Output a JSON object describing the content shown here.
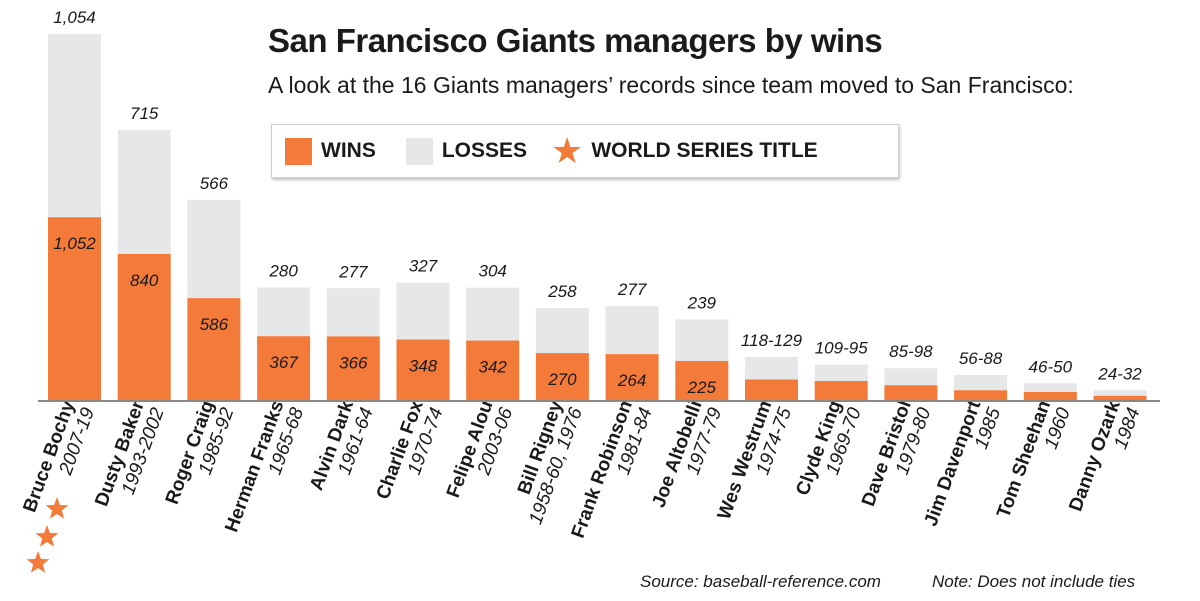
{
  "title": "San Francisco Giants managers by wins",
  "subtitle": "A look at the 16 Giants managers’ records  since team moved to San Francisco:",
  "legend": {
    "wins": "WINS",
    "losses": "LOSSES",
    "ws": "WORLD SERIES TITLE",
    "star_icon": "star-icon"
  },
  "source": "Source: baseball-reference.com",
  "note": "Note: Does not include ties",
  "colors": {
    "wins": "#f47a3a",
    "losses": "#e6e7e8",
    "star": "#f47a3a",
    "axis": "#888888"
  },
  "chart_data": {
    "type": "bar",
    "stacked": true,
    "title": "San Francisco Giants managers by wins",
    "categories": [
      "Bruce Bochy",
      "Dusty Baker",
      "Roger Craig",
      "Herman Franks",
      "Alvin Dark",
      "Charlie Fox",
      "Felipe Alou",
      "Bill Rigney",
      "Frank Robinson",
      "Joe Altobelli",
      "Wes Westrum",
      "Clyde King",
      "Dave Bristol",
      "Jim Davenport",
      "Tom  Sheehan",
      "Danny Ozark"
    ],
    "years": [
      "2007-19",
      "1993-2002",
      "1985-92",
      "1965-68",
      "1961-64",
      "1970-74",
      "2003-06",
      "1958-60, 1976",
      "1981-84",
      "1977-79",
      "1974-75",
      "1969-70",
      "1979-80",
      "1985",
      "1960",
      "1984"
    ],
    "series": [
      {
        "name": "WINS",
        "values": [
          1052,
          840,
          586,
          367,
          366,
          348,
          342,
          270,
          264,
          225,
          118,
          109,
          85,
          56,
          46,
          24
        ]
      },
      {
        "name": "LOSSES",
        "values": [
          1054,
          715,
          566,
          280,
          277,
          327,
          304,
          258,
          277,
          239,
          129,
          95,
          98,
          88,
          50,
          32
        ]
      }
    ],
    "win_labels": [
      "1,052",
      "840",
      "586",
      "367",
      "366",
      "348",
      "342",
      "270",
      "264",
      "225",
      "",
      "",
      "",
      "",
      "",
      ""
    ],
    "loss_labels": [
      "1,054",
      "715",
      "566",
      "280",
      "277",
      "327",
      "304",
      "258",
      "277",
      "239",
      "118-129",
      "109-95",
      "85-98",
      "56-88",
      "46-50",
      "24-32"
    ],
    "world_series_titles": [
      3,
      0,
      0,
      0,
      0,
      0,
      0,
      0,
      0,
      0,
      0,
      0,
      0,
      0,
      0,
      0
    ],
    "ylim": [
      0,
      2106
    ],
    "legend_position": "top",
    "grid": false
  }
}
